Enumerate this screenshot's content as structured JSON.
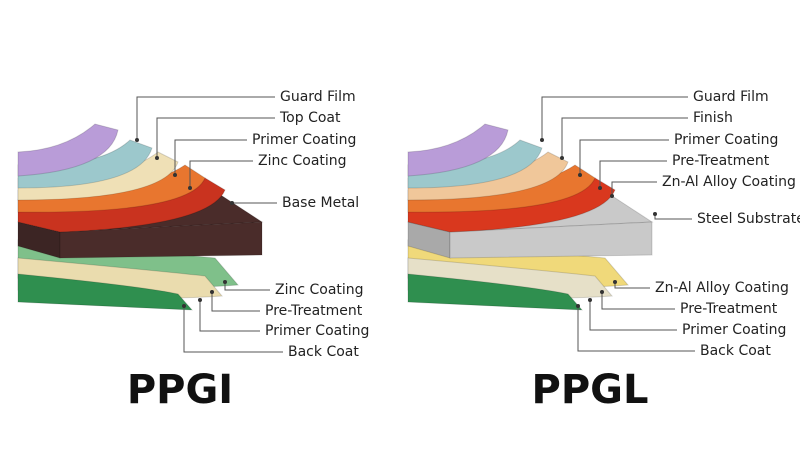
{
  "diagrams": [
    {
      "title": "PPGI",
      "top_layers": [
        "Guard Film",
        "Top Coat",
        "Primer Coating",
        "Zinc Coating",
        "Base Metal"
      ],
      "bottom_layers": [
        "Zinc Coating",
        "Pre-Treatment",
        "Primer Coating",
        "Back Coat"
      ]
    },
    {
      "title": "PPGL",
      "top_layers": [
        "Guard Film",
        "Finish",
        "Primer Coating",
        "Pre-Treatment",
        "Zn-Al Alloy Coating",
        "Steel Substrate"
      ],
      "bottom_layers": [
        "Zn-Al Alloy Coating",
        "Pre-Treatment",
        "Primer Coating",
        "Back Coat"
      ]
    }
  ]
}
